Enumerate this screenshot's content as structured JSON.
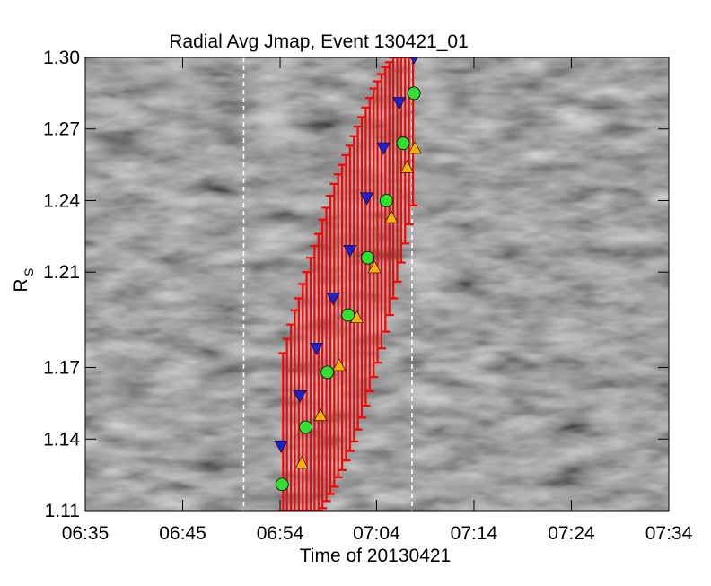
{
  "chart_data": {
    "type": "scatter",
    "title": "Radial Avg Jmap, Event 130421_01",
    "xlabel": "Time of 20130421",
    "ylabel_main": "R",
    "ylabel_sub": "S",
    "x_ticks": [
      "06:35",
      "06:45",
      "06:54",
      "07:04",
      "07:14",
      "07:24",
      "07:34"
    ],
    "x_tick_minutes": [
      0,
      9.9,
      19.8,
      29.6,
      39.5,
      49.4,
      59.3
    ],
    "x_range_minutes": [
      0,
      59.3
    ],
    "y_ticks": [
      "1.11",
      "1.14",
      "1.17",
      "1.21",
      "1.24",
      "1.27",
      "1.30"
    ],
    "y_tick_values": [
      1.11,
      1.14,
      1.17,
      1.21,
      1.24,
      1.27,
      1.3
    ],
    "y_range": [
      1.11,
      1.3
    ],
    "vertical_lines_minutes": [
      16.1,
      33.2
    ],
    "background": "grayscale running-difference Jmap",
    "colors": {
      "error_bars": "#ff0000",
      "series_a": "#2020d0",
      "series_b": "#ffb000",
      "series_c": "#30e030",
      "vline": "#ffffff"
    },
    "series": [
      {
        "marker": "triangle-down",
        "color": "#2020d0",
        "x": [
          19.9,
          21.8,
          23.5,
          25.2,
          26.9,
          28.6,
          30.3,
          31.9,
          33.4
        ],
        "y": [
          1.137,
          1.158,
          1.178,
          1.199,
          1.219,
          1.241,
          1.262,
          1.281,
          1.3
        ]
      },
      {
        "marker": "triangle-up",
        "color": "#ffb000",
        "x": [
          22.0,
          23.9,
          25.8,
          27.6,
          29.4,
          31.1,
          32.7,
          33.5
        ],
        "y": [
          1.13,
          1.15,
          1.171,
          1.191,
          1.212,
          1.233,
          1.254,
          1.262
        ]
      },
      {
        "marker": "circle",
        "color": "#30e030",
        "x": [
          20.0,
          22.4,
          24.6,
          26.7,
          28.7,
          30.6,
          32.3,
          33.4
        ],
        "y": [
          1.121,
          1.145,
          1.168,
          1.192,
          1.216,
          1.24,
          1.264,
          1.285
        ]
      }
    ],
    "error_bar_columns": [
      {
        "x": 20.1,
        "lo": 1.11,
        "hi": 1.176
      },
      {
        "x": 20.5,
        "lo": 1.11,
        "hi": 1.182
      },
      {
        "x": 20.9,
        "lo": 1.11,
        "hi": 1.188
      },
      {
        "x": 21.3,
        "lo": 1.11,
        "hi": 1.194
      },
      {
        "x": 21.7,
        "lo": 1.11,
        "hi": 1.199
      },
      {
        "x": 22.1,
        "lo": 1.11,
        "hi": 1.205
      },
      {
        "x": 22.5,
        "lo": 1.11,
        "hi": 1.21
      },
      {
        "x": 22.9,
        "lo": 1.11,
        "hi": 1.216
      },
      {
        "x": 23.3,
        "lo": 1.11,
        "hi": 1.221
      },
      {
        "x": 23.7,
        "lo": 1.11,
        "hi": 1.226
      },
      {
        "x": 24.1,
        "lo": 1.111,
        "hi": 1.232
      },
      {
        "x": 24.5,
        "lo": 1.114,
        "hi": 1.237
      },
      {
        "x": 24.9,
        "lo": 1.117,
        "hi": 1.242
      },
      {
        "x": 25.3,
        "lo": 1.12,
        "hi": 1.247
      },
      {
        "x": 25.7,
        "lo": 1.124,
        "hi": 1.251
      },
      {
        "x": 26.1,
        "lo": 1.127,
        "hi": 1.255
      },
      {
        "x": 26.5,
        "lo": 1.131,
        "hi": 1.259
      },
      {
        "x": 26.9,
        "lo": 1.135,
        "hi": 1.263
      },
      {
        "x": 27.3,
        "lo": 1.139,
        "hi": 1.267
      },
      {
        "x": 27.7,
        "lo": 1.144,
        "hi": 1.271
      },
      {
        "x": 28.1,
        "lo": 1.149,
        "hi": 1.275
      },
      {
        "x": 28.5,
        "lo": 1.154,
        "hi": 1.279
      },
      {
        "x": 28.9,
        "lo": 1.16,
        "hi": 1.283
      },
      {
        "x": 29.3,
        "lo": 1.166,
        "hi": 1.287
      },
      {
        "x": 29.7,
        "lo": 1.172,
        "hi": 1.29
      },
      {
        "x": 30.1,
        "lo": 1.178,
        "hi": 1.293
      },
      {
        "x": 30.5,
        "lo": 1.185,
        "hi": 1.296
      },
      {
        "x": 30.9,
        "lo": 1.192,
        "hi": 1.298
      },
      {
        "x": 31.3,
        "lo": 1.199,
        "hi": 1.3
      },
      {
        "x": 31.7,
        "lo": 1.206,
        "hi": 1.3
      },
      {
        "x": 32.1,
        "lo": 1.214,
        "hi": 1.3
      },
      {
        "x": 32.5,
        "lo": 1.222,
        "hi": 1.3
      },
      {
        "x": 32.9,
        "lo": 1.23,
        "hi": 1.3
      },
      {
        "x": 33.3,
        "lo": 1.238,
        "hi": 1.3
      }
    ]
  }
}
